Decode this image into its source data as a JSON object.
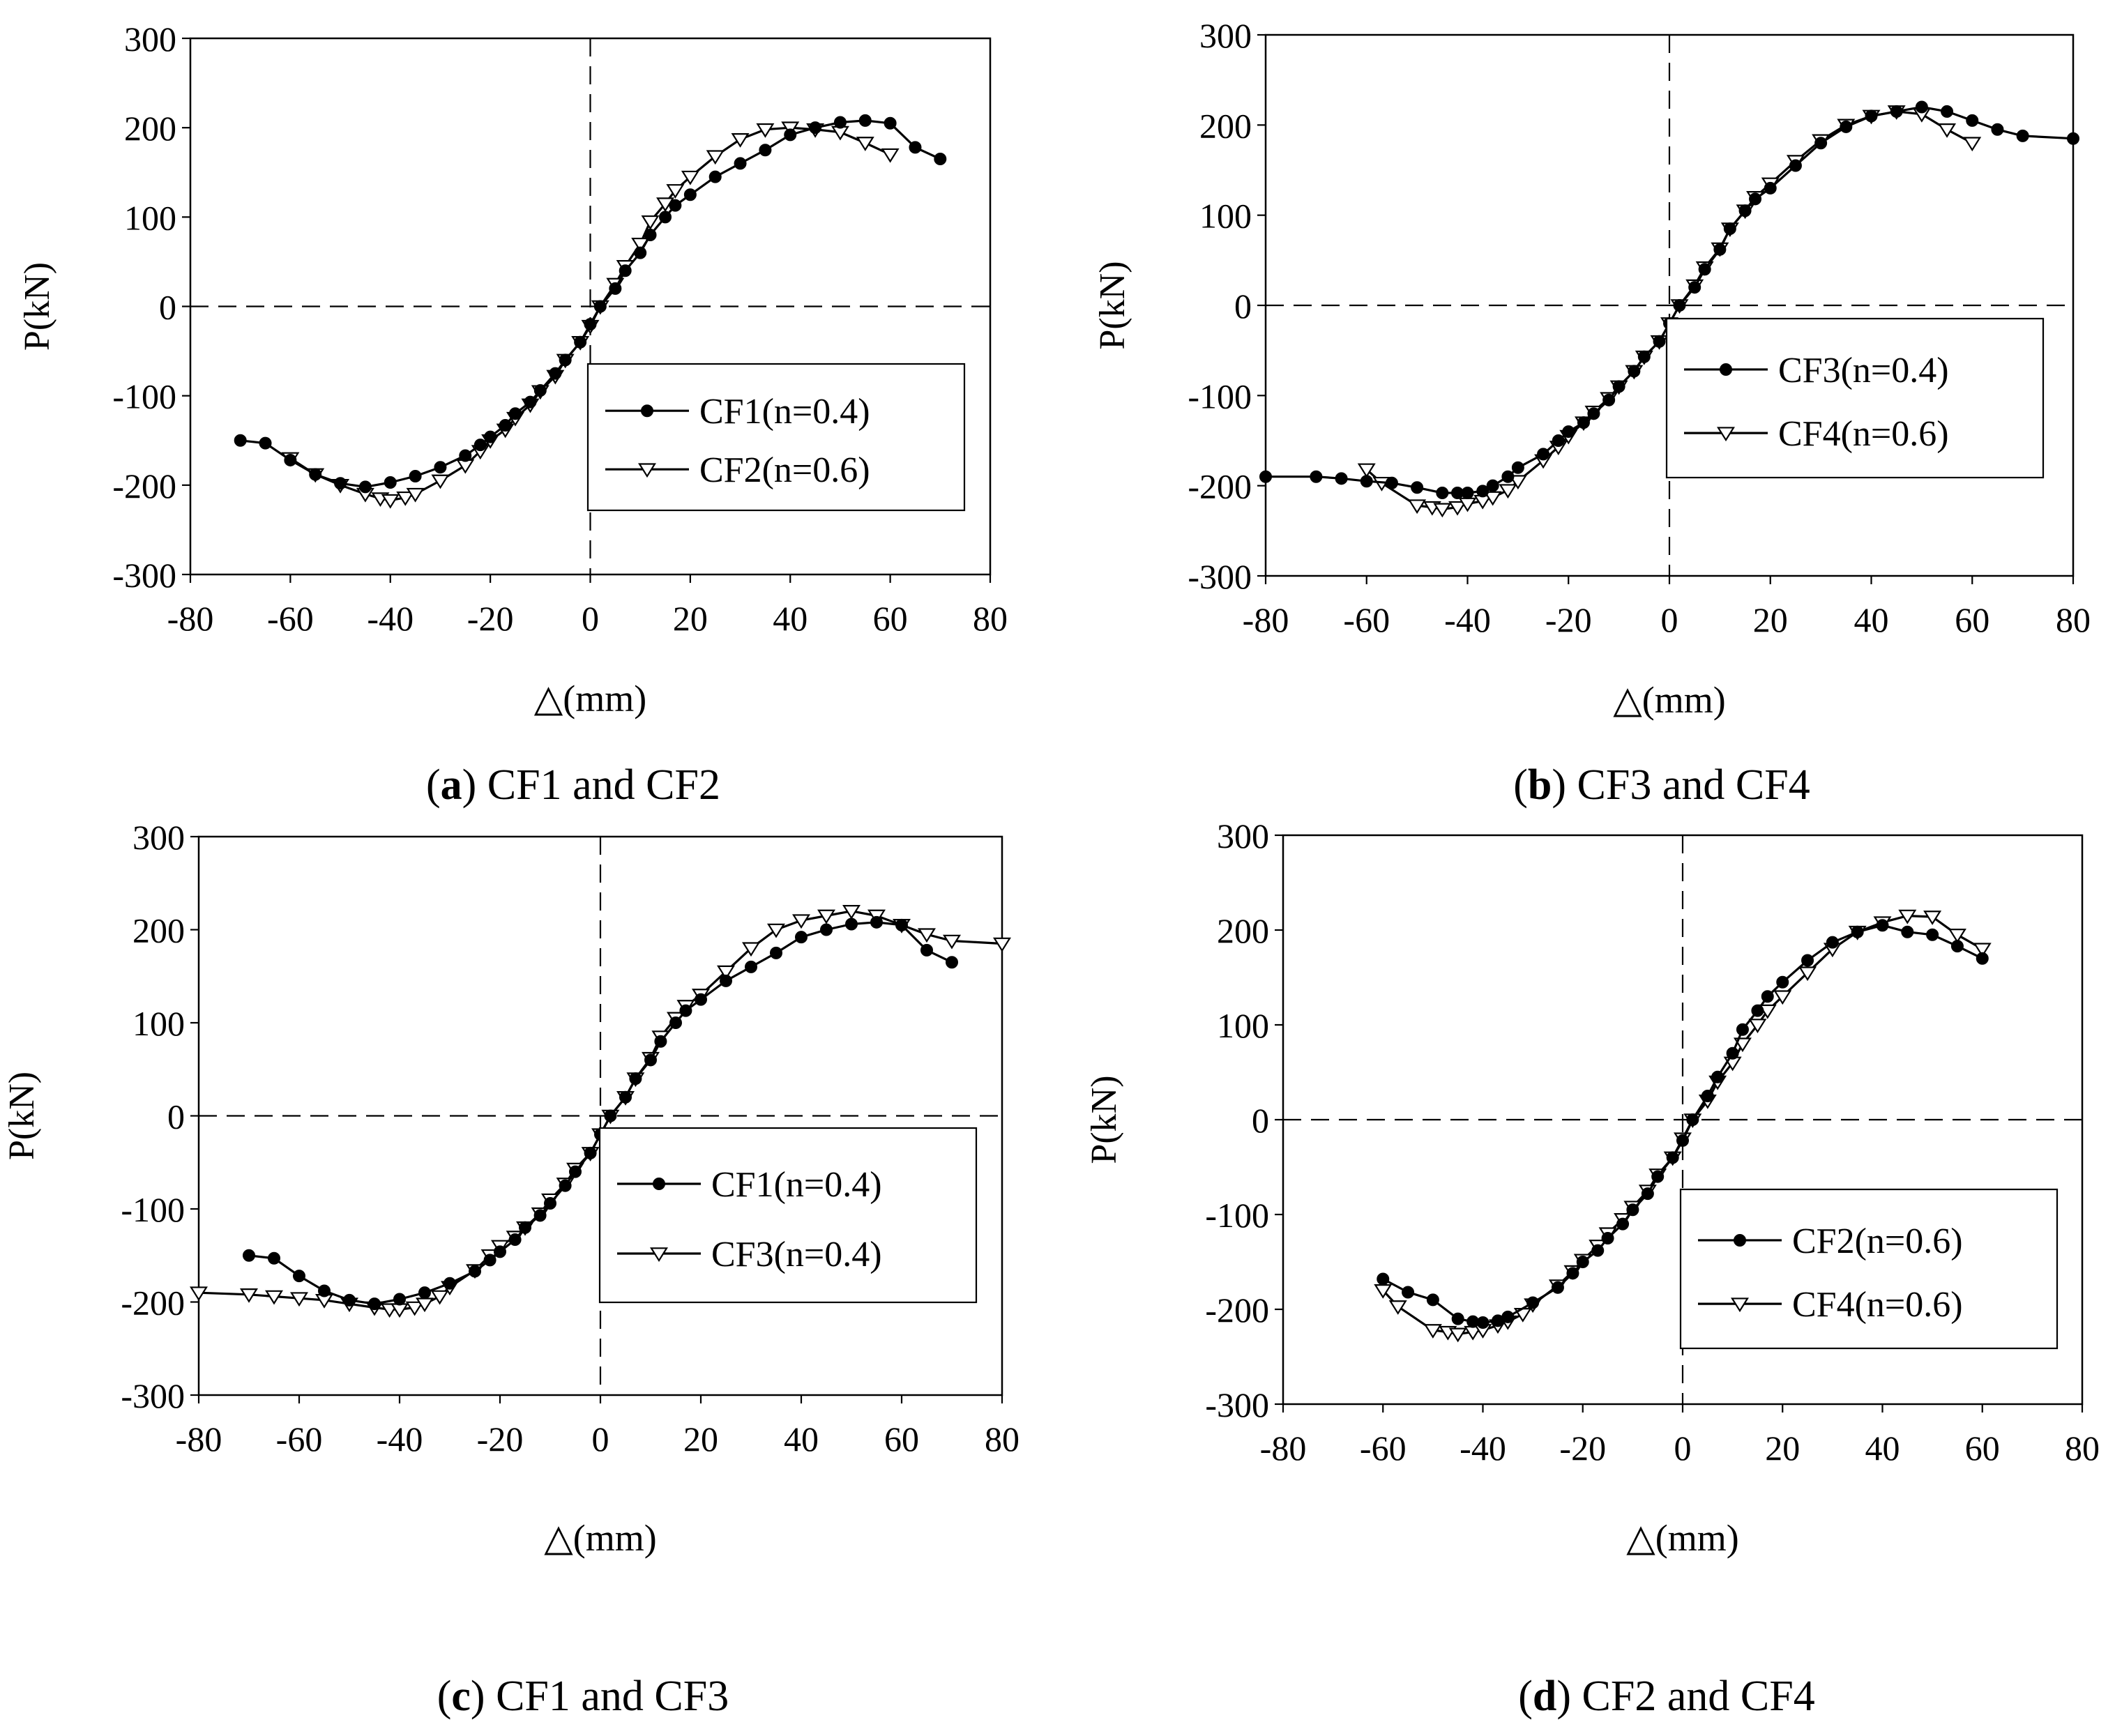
{
  "figure": {
    "panels": [
      {
        "id": "a",
        "letter": "a",
        "caption_text": " CF1 and CF2",
        "chart_data": {
          "type": "line",
          "title": "",
          "xlabel": "△(mm)",
          "ylabel": "P(kN)",
          "xlim": [
            -80,
            80
          ],
          "ylim": [
            -300,
            300
          ],
          "xticks": [
            -80,
            -60,
            -40,
            -20,
            0,
            20,
            40,
            60,
            80
          ],
          "yticks": [
            -300,
            -200,
            -100,
            0,
            100,
            200,
            300
          ],
          "grid": false,
          "legend_position": "lower-right",
          "series": [
            {
              "name": "CF1(n=0.4)",
              "marker": "circle-filled",
              "x": [
                -70,
                -65,
                -60,
                -55,
                -50,
                -45,
                -40,
                -35,
                -30,
                -25,
                -22,
                -20,
                -17,
                -15,
                -12,
                -10,
                -7,
                -5,
                -2,
                0,
                2,
                5,
                7,
                10,
                12,
                15,
                17,
                20,
                25,
                30,
                35,
                40,
                45,
                50,
                55,
                60,
                65,
                70
              ],
              "y": [
                -150,
                -153,
                -172,
                -188,
                -198,
                -202,
                -197,
                -190,
                -180,
                -167,
                -155,
                -146,
                -133,
                -120,
                -107,
                -94,
                -75,
                -60,
                -40,
                -20,
                0,
                20,
                40,
                60,
                80,
                100,
                113,
                125,
                145,
                160,
                175,
                192,
                200,
                206,
                208,
                205,
                178,
                165
              ]
            },
            {
              "name": "CF2(n=0.6)",
              "marker": "triangle-down-open",
              "x": [
                -60,
                -55,
                -50,
                -45,
                -42,
                -40,
                -37,
                -35,
                -30,
                -25,
                -22,
                -20,
                -17,
                -15,
                -12,
                -10,
                -7,
                -5,
                -2,
                0,
                2,
                5,
                7,
                10,
                12,
                15,
                17,
                20,
                25,
                30,
                35,
                40,
                45,
                50,
                55,
                60
              ],
              "y": [
                -170,
                -188,
                -200,
                -210,
                -215,
                -217,
                -214,
                -210,
                -195,
                -178,
                -162,
                -150,
                -138,
                -125,
                -110,
                -95,
                -78,
                -60,
                -40,
                -22,
                0,
                25,
                45,
                70,
                95,
                115,
                130,
                145,
                168,
                187,
                198,
                200,
                198,
                195,
                183,
                170
              ]
            }
          ]
        }
      },
      {
        "id": "b",
        "letter": "b",
        "caption_text": " CF3 and CF4",
        "chart_data": {
          "type": "line",
          "title": "",
          "xlabel": "△(mm)",
          "ylabel": "P(kN)",
          "xlim": [
            -80,
            80
          ],
          "ylim": [
            -300,
            300
          ],
          "xticks": [
            -80,
            -60,
            -40,
            -20,
            0,
            20,
            40,
            60,
            80
          ],
          "yticks": [
            -300,
            -200,
            -100,
            0,
            100,
            200,
            300
          ],
          "grid": false,
          "legend_position": "upper-right",
          "series": [
            {
              "name": "CF3(n=0.4)",
              "marker": "circle-filled",
              "x": [
                -80,
                -70,
                -65,
                -60,
                -55,
                -50,
                -45,
                -42,
                -40,
                -37,
                -35,
                -32,
                -30,
                -25,
                -22,
                -20,
                -17,
                -15,
                -12,
                -10,
                -7,
                -5,
                -2,
                0,
                2,
                5,
                7,
                10,
                12,
                15,
                17,
                20,
                25,
                30,
                35,
                40,
                45,
                50,
                55,
                60,
                65,
                70,
                80
              ],
              "y": [
                -190,
                -190,
                -192,
                -195,
                -197,
                -202,
                -208,
                -208,
                -208,
                -206,
                -200,
                -190,
                -180,
                -165,
                -150,
                -140,
                -130,
                -120,
                -105,
                -90,
                -73,
                -57,
                -40,
                -20,
                0,
                20,
                40,
                62,
                85,
                105,
                118,
                130,
                155,
                180,
                198,
                210,
                215,
                220,
                215,
                205,
                195,
                188,
                185
              ]
            },
            {
              "name": "CF4(n=0.6)",
              "marker": "triangle-down-open",
              "x": [
                -60,
                -57,
                -50,
                -47,
                -45,
                -42,
                -40,
                -37,
                -35,
                -32,
                -30,
                -25,
                -22,
                -20,
                -17,
                -15,
                -12,
                -10,
                -7,
                -5,
                -2,
                0,
                2,
                5,
                7,
                10,
                12,
                15,
                17,
                20,
                25,
                30,
                35,
                40,
                45,
                50,
                55,
                60
              ],
              "y": [
                -182,
                -197,
                -222,
                -224,
                -226,
                -224,
                -220,
                -217,
                -213,
                -205,
                -195,
                -172,
                -157,
                -145,
                -130,
                -118,
                -103,
                -90,
                -73,
                -57,
                -40,
                -20,
                0,
                22,
                42,
                63,
                85,
                105,
                120,
                135,
                160,
                183,
                200,
                210,
                215,
                212,
                195,
                180
              ]
            }
          ]
        }
      },
      {
        "id": "c",
        "letter": "c",
        "caption_text": " CF1 and CF3",
        "chart_data": {
          "type": "line",
          "title": "",
          "xlabel": "△(mm)",
          "ylabel": "P(kN)",
          "xlim": [
            -80,
            80
          ],
          "ylim": [
            -300,
            300
          ],
          "xticks": [
            -80,
            -60,
            -40,
            -20,
            0,
            20,
            40,
            60,
            80
          ],
          "yticks": [
            -300,
            -200,
            -100,
            0,
            100,
            200,
            300
          ],
          "grid": false,
          "legend_position": "lower-right",
          "series": [
            {
              "name": "CF1(n=0.4)",
              "marker": "circle-filled",
              "x": [
                -70,
                -65,
                -60,
                -55,
                -50,
                -45,
                -40,
                -35,
                -30,
                -25,
                -22,
                -20,
                -17,
                -15,
                -12,
                -10,
                -7,
                -5,
                -2,
                0,
                2,
                5,
                7,
                10,
                12,
                15,
                17,
                20,
                25,
                30,
                35,
                40,
                45,
                50,
                55,
                60,
                65,
                70
              ],
              "y": [
                -150,
                -153,
                -172,
                -188,
                -198,
                -202,
                -197,
                -190,
                -180,
                -167,
                -155,
                -146,
                -133,
                -120,
                -107,
                -94,
                -75,
                -60,
                -40,
                -20,
                0,
                20,
                40,
                60,
                80,
                100,
                113,
                125,
                145,
                160,
                175,
                192,
                200,
                206,
                208,
                205,
                178,
                165
              ]
            },
            {
              "name": "CF3(n=0.4)",
              "marker": "triangle-down-open",
              "x": [
                -80,
                -70,
                -65,
                -60,
                -55,
                -50,
                -45,
                -42,
                -40,
                -37,
                -35,
                -32,
                -30,
                -25,
                -22,
                -20,
                -17,
                -15,
                -12,
                -10,
                -7,
                -5,
                -2,
                0,
                2,
                5,
                7,
                10,
                12,
                15,
                17,
                20,
                25,
                30,
                35,
                40,
                45,
                50,
                55,
                60,
                65,
                70,
                80
              ],
              "y": [
                -190,
                -192,
                -194,
                -196,
                -198,
                -202,
                -206,
                -208,
                -208,
                -206,
                -202,
                -194,
                -184,
                -166,
                -150,
                -140,
                -130,
                -120,
                -105,
                -90,
                -73,
                -57,
                -40,
                -20,
                0,
                20,
                40,
                62,
                85,
                105,
                118,
                130,
                155,
                180,
                200,
                210,
                215,
                220,
                215,
                205,
                195,
                188,
                185
              ]
            }
          ]
        }
      },
      {
        "id": "d",
        "letter": "d",
        "caption_text": " CF2 and CF4",
        "chart_data": {
          "type": "line",
          "title": "",
          "xlabel": "△(mm)",
          "ylabel": "P(kN)",
          "xlim": [
            -80,
            80
          ],
          "ylim": [
            -300,
            300
          ],
          "xticks": [
            -80,
            -60,
            -40,
            -20,
            0,
            20,
            40,
            60,
            80
          ],
          "yticks": [
            -300,
            -200,
            -100,
            0,
            100,
            200,
            300
          ],
          "grid": false,
          "legend_position": "lower-right",
          "series": [
            {
              "name": "CF2(n=0.6)",
              "marker": "circle-filled",
              "x": [
                -60,
                -55,
                -50,
                -45,
                -42,
                -40,
                -37,
                -35,
                -30,
                -25,
                -22,
                -20,
                -17,
                -15,
                -12,
                -10,
                -7,
                -5,
                -2,
                0,
                2,
                5,
                7,
                10,
                12,
                15,
                17,
                20,
                25,
                30,
                35,
                40,
                45,
                50,
                55,
                60
              ],
              "y": [
                -168,
                -182,
                -190,
                -210,
                -213,
                -214,
                -212,
                -208,
                -193,
                -177,
                -162,
                -150,
                -138,
                -125,
                -110,
                -95,
                -78,
                -60,
                -40,
                -22,
                0,
                25,
                45,
                70,
                95,
                115,
                130,
                145,
                168,
                187,
                198,
                205,
                198,
                195,
                183,
                170
              ]
            },
            {
              "name": "CF4(n=0.6)",
              "marker": "triangle-down-open",
              "x": [
                -60,
                -57,
                -50,
                -47,
                -45,
                -42,
                -40,
                -37,
                -35,
                -32,
                -30,
                -25,
                -22,
                -20,
                -17,
                -15,
                -12,
                -10,
                -7,
                -5,
                -2,
                0,
                2,
                5,
                7,
                10,
                12,
                15,
                17,
                20,
                25,
                30,
                35,
                40,
                45,
                50,
                55,
                60
              ],
              "y": [
                -180,
                -197,
                -222,
                -224,
                -226,
                -224,
                -222,
                -217,
                -213,
                -205,
                -195,
                -175,
                -160,
                -148,
                -133,
                -120,
                -105,
                -92,
                -75,
                -58,
                -40,
                -20,
                0,
                20,
                40,
                60,
                80,
                100,
                115,
                130,
                155,
                180,
                198,
                208,
                215,
                214,
                195,
                180
              ]
            }
          ]
        }
      }
    ]
  }
}
